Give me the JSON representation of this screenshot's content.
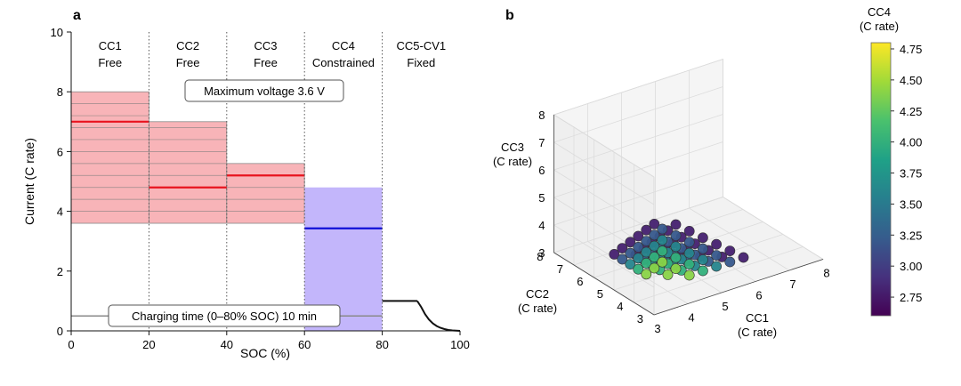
{
  "chart_data": [
    {
      "panel_label": "a",
      "type": "step-current-profile",
      "xlabel": "SOC (%)",
      "ylabel": "Current (C rate)",
      "xlim": [
        0,
        100
      ],
      "ylim": [
        0,
        10
      ],
      "xticks": [
        "0",
        "20",
        "40",
        "60",
        "80",
        "100"
      ],
      "yticks": [
        "0",
        "2",
        "4",
        "6",
        "8",
        "10"
      ],
      "step_headers": [
        {
          "name": "CC1",
          "status": "Free"
        },
        {
          "name": "CC2",
          "status": "Free"
        },
        {
          "name": "CC3",
          "status": "Free"
        },
        {
          "name": "CC4",
          "status": "Constrained"
        },
        {
          "name": "CC5-CV1",
          "status": "Fixed"
        }
      ],
      "step_boundaries": [
        20,
        40,
        60,
        80
      ],
      "free_ranges": [
        {
          "soc": [
            0,
            20
          ],
          "min": 3.6,
          "max": 8.0
        },
        {
          "soc": [
            20,
            40
          ],
          "min": 3.6,
          "max": 7.0
        },
        {
          "soc": [
            40,
            60
          ],
          "min": 3.6,
          "max": 5.6
        }
      ],
      "option_levels": [
        3.6,
        4.0,
        4.4,
        4.8,
        5.2,
        5.6,
        6.0,
        6.4,
        6.8,
        7.2,
        7.6,
        8.0
      ],
      "constrained_range": {
        "soc": [
          60,
          80
        ],
        "min": 0,
        "max": 4.8
      },
      "selected_free": [
        {
          "soc": [
            0,
            20
          ],
          "value": 7.0
        },
        {
          "soc": [
            20,
            40
          ],
          "value": 4.8
        },
        {
          "soc": [
            40,
            60
          ],
          "value": 5.2
        }
      ],
      "selected_constrained": {
        "soc": [
          60,
          80
        ],
        "value": 3.43
      },
      "cc5_cv": {
        "cc_value": 1.0,
        "cc_soc": [
          80,
          89
        ],
        "cv_curve": [
          [
            89,
            1.0
          ],
          [
            90,
            0.8
          ],
          [
            91,
            0.56
          ],
          [
            92,
            0.38
          ],
          [
            93,
            0.25
          ],
          [
            94,
            0.16
          ],
          [
            95,
            0.1
          ],
          [
            96,
            0.06
          ],
          [
            97,
            0.03
          ],
          [
            98,
            0.015
          ],
          [
            100,
            0.0
          ]
        ]
      },
      "charging_time_line": 0.5,
      "annotations": {
        "max_voltage": "Maximum voltage 3.6 V",
        "charging_time": "Charging time (0–80% SOC) 10 min"
      },
      "colors": {
        "free_fill": "#f8b4b8",
        "constrained_fill": "#c3b6fb",
        "selected_free": "#e8141f",
        "selected_constrained": "#1010d8"
      }
    },
    {
      "panel_label": "b",
      "type": "scatter3d",
      "xlabel": "CC1\n(C rate)",
      "ylabel": "CC2\n(C rate)",
      "zlabel": "CC3\n(C rate)",
      "xticks": [
        "3",
        "4",
        "5",
        "6",
        "7",
        "8"
      ],
      "yticks": [
        "3",
        "4",
        "5",
        "6",
        "7",
        "8"
      ],
      "zticks": [
        "3",
        "4",
        "5",
        "6",
        "7",
        "8"
      ],
      "xlim": [
        3,
        8
      ],
      "ylim": [
        3,
        8
      ],
      "zlim": [
        3,
        8
      ],
      "grid": {
        "cc1": [
          3.6,
          4.0,
          4.4,
          4.8,
          5.2,
          5.6,
          6.0,
          6.4,
          6.8,
          7.2,
          7.6,
          8.0
        ],
        "cc2": [
          3.6,
          4.0,
          4.4,
          4.8,
          5.2,
          5.6,
          6.0,
          6.4,
          6.8,
          7.2,
          7.6,
          8.0
        ],
        "cc3": [
          3.6,
          4.0,
          4.4,
          4.8,
          5.2,
          5.6
        ],
        "cc3_max_cc4": 4.8
      },
      "colorbar": {
        "title": "CC4\n(C rate)",
        "range": [
          2.6,
          4.8
        ],
        "ticks": [
          "2.75",
          "3.00",
          "3.25",
          "3.50",
          "3.75",
          "4.00",
          "4.25",
          "4.50",
          "4.75"
        ],
        "colormap": [
          "#440154",
          "#46327e",
          "#365c8d",
          "#277f8e",
          "#1fa187",
          "#4ac16d",
          "#a0da39",
          "#fde725"
        ]
      }
    }
  ]
}
